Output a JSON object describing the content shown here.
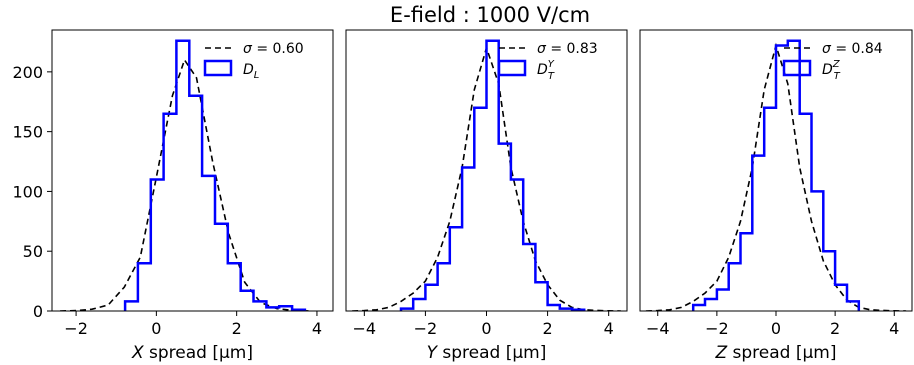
{
  "chart_data": [
    {
      "type": "histogram",
      "title": "E-field : 1000 V/cm",
      "xlabel_var": "X",
      "xlabel_rest": " spread [μm]",
      "xlim": [
        -2.6,
        4.4
      ],
      "ylim": [
        0,
        235
      ],
      "xticks": [
        -2,
        0,
        2,
        4
      ],
      "yticks": [
        0,
        50,
        100,
        150,
        200
      ],
      "legend": {
        "placement": "top-right",
        "fit_label_prefix": "σ = ",
        "sigma": "0.60",
        "hist_label_main": "D",
        "hist_label_sub": "L",
        "hist_label_sup": ""
      },
      "hist_edges": [
        -0.78,
        -0.46,
        -0.14,
        0.18,
        0.5,
        0.82,
        1.14,
        1.46,
        1.78,
        2.1,
        2.42,
        2.74,
        3.06,
        3.38,
        3.7
      ],
      "hist_counts": [
        8,
        40,
        110,
        165,
        226,
        180,
        113,
        73,
        40,
        17,
        8,
        3,
        4,
        1
      ],
      "fit_curve": {
        "style": "dashed",
        "x": [
          -2.4,
          -2.0,
          -1.6,
          -1.2,
          -0.8,
          -0.4,
          0.0,
          0.4,
          0.7,
          1.0,
          1.4,
          1.8,
          2.2,
          2.6,
          3.0,
          3.4,
          3.8
        ],
        "y": [
          0,
          0.3,
          1.5,
          5,
          20,
          45,
          112,
          180,
          210,
          195,
          125,
          65,
          24,
          7,
          2,
          0.5,
          0
        ]
      }
    },
    {
      "type": "histogram",
      "xlabel_var": "Y",
      "xlabel_rest": " spread [μm]",
      "xlim": [
        -4.6,
        4.6
      ],
      "ylim": [
        0,
        235
      ],
      "xticks": [
        -4,
        -2,
        0,
        2,
        4
      ],
      "yticks": [],
      "legend": {
        "placement": "top-right",
        "fit_label_prefix": "σ = ",
        "sigma": "0.83",
        "hist_label_main": "D",
        "hist_label_sub": "T",
        "hist_label_sup": "Y"
      },
      "hist_edges": [
        -2.8,
        -2.4,
        -2.0,
        -1.6,
        -1.2,
        -0.8,
        -0.4,
        0.0,
        0.4,
        0.8,
        1.2,
        1.6,
        2.0,
        2.4,
        2.8,
        3.2
      ],
      "hist_counts": [
        2,
        10,
        22,
        40,
        70,
        120,
        170,
        226,
        140,
        110,
        56,
        24,
        5,
        2,
        1
      ],
      "fit_curve": {
        "style": "dashed",
        "x": [
          -4.4,
          -4.0,
          -3.6,
          -3.2,
          -2.8,
          -2.4,
          -2.0,
          -1.6,
          -1.2,
          -0.8,
          -0.4,
          0.0,
          0.4,
          0.8,
          1.2,
          1.6,
          2.0,
          2.4,
          2.8,
          3.2,
          3.6,
          4.0,
          4.4
        ],
        "y": [
          0,
          0.3,
          1,
          3,
          8,
          15,
          25,
          45,
          75,
          120,
          185,
          220,
          190,
          120,
          75,
          42,
          22,
          9,
          3,
          1,
          0.5,
          0.2,
          0
        ]
      }
    },
    {
      "type": "histogram",
      "xlabel_var": "Z",
      "xlabel_rest": " spread [μm]",
      "xlim": [
        -4.6,
        4.6
      ],
      "ylim": [
        0,
        235
      ],
      "xticks": [
        -4,
        -2,
        0,
        2,
        4
      ],
      "yticks": [],
      "legend": {
        "placement": "top-right",
        "fit_label_prefix": "σ = ",
        "sigma": "0.84",
        "hist_label_main": "D",
        "hist_label_sub": "T",
        "hist_label_sup": "Z"
      },
      "hist_edges": [
        -2.8,
        -2.4,
        -2.0,
        -1.6,
        -1.2,
        -0.8,
        -0.4,
        0.0,
        0.4,
        0.8,
        1.2,
        1.6,
        2.0,
        2.4,
        2.8
      ],
      "hist_counts": [
        5,
        10,
        18,
        40,
        65,
        130,
        170,
        222,
        226,
        165,
        100,
        50,
        22,
        8
      ],
      "fit_curve": {
        "style": "dashed",
        "x": [
          -4.4,
          -4.0,
          -3.6,
          -3.2,
          -2.8,
          -2.4,
          -2.0,
          -1.6,
          -1.2,
          -0.8,
          -0.4,
          0.0,
          0.4,
          0.8,
          1.2,
          1.6,
          2.0,
          2.4,
          2.8,
          3.2,
          3.6,
          4.0,
          4.4
        ],
        "y": [
          0,
          0.3,
          1,
          3,
          8,
          15,
          25,
          45,
          75,
          120,
          185,
          222,
          190,
          120,
          75,
          42,
          22,
          9,
          3,
          1,
          0.5,
          0.2,
          0
        ]
      }
    }
  ]
}
